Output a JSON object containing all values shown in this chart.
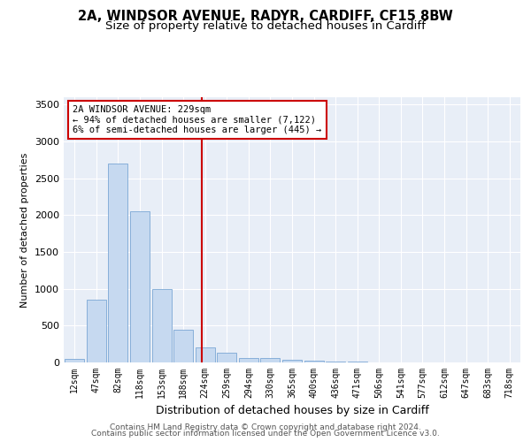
{
  "title1": "2A, WINDSOR AVENUE, RADYR, CARDIFF, CF15 8BW",
  "title2": "Size of property relative to detached houses in Cardiff",
  "xlabel": "Distribution of detached houses by size in Cardiff",
  "ylabel": "Number of detached properties",
  "categories": [
    "12sqm",
    "47sqm",
    "82sqm",
    "118sqm",
    "153sqm",
    "188sqm",
    "224sqm",
    "259sqm",
    "294sqm",
    "330sqm",
    "365sqm",
    "400sqm",
    "436sqm",
    "471sqm",
    "506sqm",
    "541sqm",
    "577sqm",
    "612sqm",
    "647sqm",
    "683sqm",
    "718sqm"
  ],
  "values": [
    50,
    850,
    2700,
    2050,
    1000,
    450,
    200,
    130,
    65,
    55,
    40,
    25,
    15,
    10,
    5,
    3,
    2,
    1,
    0,
    0,
    0
  ],
  "bar_color": "#c6d9f0",
  "bar_edge_color": "#7ba7d4",
  "vline_color": "#cc0000",
  "vline_pos": 5.85,
  "annotation_text": "2A WINDSOR AVENUE: 229sqm\n← 94% of detached houses are smaller (7,122)\n6% of semi-detached houses are larger (445) →",
  "annotation_box_color": "#cc0000",
  "ylim": [
    0,
    3600
  ],
  "yticks": [
    0,
    500,
    1000,
    1500,
    2000,
    2500,
    3000,
    3500
  ],
  "footer1": "Contains HM Land Registry data © Crown copyright and database right 2024.",
  "footer2": "Contains public sector information licensed under the Open Government Licence v3.0.",
  "bg_color": "#e8eef7",
  "title1_fontsize": 10.5,
  "title2_fontsize": 9.5,
  "ylabel_fontsize": 8,
  "xlabel_fontsize": 9
}
